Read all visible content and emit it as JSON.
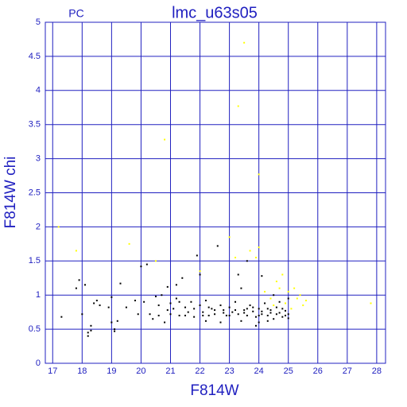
{
  "chart_data": {
    "type": "scatter",
    "title": "lmc_u63s05",
    "subtitle": "PC",
    "x_label": "F814W",
    "y_label": "F814W chi",
    "xlim": [
      16.75,
      28.3
    ],
    "ylim": [
      0,
      5
    ],
    "xticks": [
      17,
      18,
      19,
      20,
      21,
      22,
      23,
      24,
      25,
      26,
      27,
      28
    ],
    "yticks": [
      0,
      0.5,
      1,
      1.5,
      2,
      2.5,
      3,
      3.5,
      4,
      4.5,
      5
    ],
    "grid": true,
    "axis_color": "#2020c0",
    "series": [
      {
        "color": "#000000",
        "x": [
          17.3,
          17.8,
          17.9,
          18.0,
          18.1,
          18.2,
          18.2,
          18.3,
          18.4,
          18.5,
          18.6,
          18.3,
          18.9,
          19.0,
          19.0,
          19.1,
          19.1,
          19.2,
          19.3,
          19.5,
          19.8,
          19.9,
          20.0,
          20.1,
          20.2,
          20.3,
          20.4,
          20.5,
          20.6,
          20.7,
          20.8,
          20.9,
          21.0,
          21.0,
          21.1,
          21.2,
          21.3,
          21.4,
          21.5,
          21.6,
          21.7,
          21.8,
          21.9,
          22.0,
          22.1,
          22.2,
          22.3,
          22.4,
          22.5,
          22.6,
          22.7,
          22.8,
          22.9,
          23.0,
          23.1,
          23.2,
          23.3,
          23.4,
          23.5,
          23.6,
          23.7,
          23.8,
          23.9,
          24.0,
          24.1,
          24.2,
          24.3,
          24.4,
          24.5,
          24.6,
          24.7,
          24.8,
          24.9,
          25.0,
          23.2,
          23.5,
          23.8,
          24.1,
          24.3,
          24.6,
          24.9,
          22.5,
          22.8,
          23.0,
          23.6,
          24.0,
          24.4,
          24.8,
          25.0,
          21.8,
          22.1,
          22.3,
          21.5,
          21.3,
          20.9,
          20.6,
          23.3,
          23.6,
          22.0,
          21.2,
          24.1,
          24.5,
          24.7,
          25.0,
          24.3,
          24.0,
          23.9,
          23.4,
          22.7,
          22.2
        ],
        "values": [
          0.68,
          1.1,
          1.22,
          0.72,
          1.15,
          0.45,
          0.4,
          0.48,
          0.88,
          0.92,
          0.85,
          0.55,
          0.82,
          0.6,
          0.97,
          0.47,
          0.5,
          0.62,
          1.17,
          0.82,
          0.92,
          0.72,
          1.42,
          0.9,
          1.45,
          0.72,
          0.65,
          0.98,
          0.85,
          1.0,
          0.6,
          1.12,
          0.88,
          0.72,
          0.8,
          0.95,
          0.7,
          1.25,
          0.82,
          0.75,
          0.9,
          0.68,
          1.58,
          0.85,
          0.75,
          0.92,
          0.7,
          0.8,
          0.72,
          1.72,
          0.85,
          0.78,
          0.7,
          0.82,
          0.75,
          0.9,
          0.72,
          1.1,
          0.78,
          0.7,
          0.85,
          0.76,
          0.68,
          0.8,
          0.72,
          0.88,
          0.7,
          0.78,
          0.65,
          0.82,
          0.74,
          0.68,
          0.77,
          0.72,
          0.78,
          0.74,
          0.82,
          0.76,
          0.8,
          0.72,
          0.7,
          0.78,
          0.74,
          0.7,
          0.8,
          0.7,
          0.74,
          0.8,
          0.66,
          0.8,
          0.7,
          0.82,
          0.7,
          0.9,
          0.78,
          0.7,
          1.3,
          1.5,
          1.3,
          1.15,
          1.28,
          1.0,
          0.9,
          0.95,
          0.62,
          0.6,
          0.55,
          0.62,
          0.6,
          0.62
        ]
      },
      {
        "color": "#ffff00",
        "x": [
          17.2,
          17.8,
          19.6,
          20.8,
          23.3,
          23.5,
          24.0,
          23.0,
          23.7,
          24.0,
          23.2,
          27.8,
          20.5,
          25.2,
          25.3,
          25.5,
          25.4,
          24.6,
          24.8,
          25.0,
          24.4,
          24.2,
          24.9,
          25.1,
          24.7,
          24.5,
          25.6,
          22.0,
          23.9
        ],
        "values": [
          2.0,
          1.65,
          1.75,
          3.28,
          3.77,
          4.7,
          2.77,
          1.85,
          1.65,
          1.7,
          1.55,
          0.88,
          1.5,
          1.1,
          0.95,
          0.85,
          1.0,
          1.2,
          1.3,
          1.05,
          0.95,
          1.05,
          0.88,
          0.8,
          1.1,
          0.85,
          0.92,
          1.35,
          1.55
        ]
      }
    ]
  }
}
